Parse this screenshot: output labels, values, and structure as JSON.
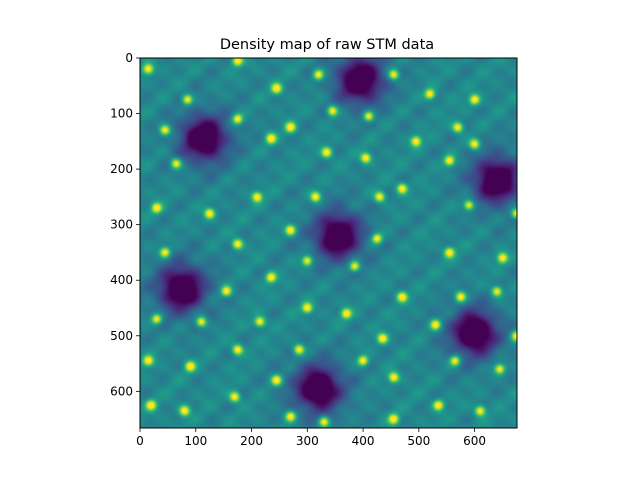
{
  "chart_data": {
    "type": "heatmap",
    "title": "Density map of raw STM data",
    "xlabel": "",
    "ylabel": "",
    "colormap": "viridis",
    "x_range": [
      0,
      676
    ],
    "y_range": [
      0,
      666
    ],
    "y_axis_inverted": true,
    "grid": false,
    "x_ticks": [
      0,
      100,
      200,
      300,
      400,
      500,
      600
    ],
    "y_ticks": [
      0,
      100,
      200,
      300,
      400,
      500,
      600
    ],
    "x_tick_labels": [
      "0",
      "100",
      "200",
      "300",
      "400",
      "500",
      "600"
    ],
    "y_tick_labels": [
      "0",
      "100",
      "200",
      "300",
      "400",
      "500",
      "600"
    ],
    "dark_centers": [
      {
        "x": 395,
        "y": 40
      },
      {
        "x": 115,
        "y": 145
      },
      {
        "x": 640,
        "y": 220
      },
      {
        "x": 355,
        "y": 320
      },
      {
        "x": 75,
        "y": 415
      },
      {
        "x": 600,
        "y": 495
      },
      {
        "x": 320,
        "y": 595
      }
    ],
    "bright_spots": [
      {
        "x": 15,
        "y": 20
      },
      {
        "x": 175,
        "y": 5
      },
      {
        "x": 320,
        "y": 30
      },
      {
        "x": 455,
        "y": 30
      },
      {
        "x": 85,
        "y": 75
      },
      {
        "x": 245,
        "y": 55
      },
      {
        "x": 345,
        "y": 95
      },
      {
        "x": 520,
        "y": 65
      },
      {
        "x": 45,
        "y": 130
      },
      {
        "x": 270,
        "y": 125
      },
      {
        "x": 410,
        "y": 105
      },
      {
        "x": 600,
        "y": 75
      },
      {
        "x": 175,
        "y": 110
      },
      {
        "x": 235,
        "y": 145
      },
      {
        "x": 495,
        "y": 150
      },
      {
        "x": 570,
        "y": 125
      },
      {
        "x": 65,
        "y": 190
      },
      {
        "x": 335,
        "y": 170
      },
      {
        "x": 405,
        "y": 180
      },
      {
        "x": 600,
        "y": 155
      },
      {
        "x": 210,
        "y": 250
      },
      {
        "x": 315,
        "y": 250
      },
      {
        "x": 470,
        "y": 235
      },
      {
        "x": 555,
        "y": 185
      },
      {
        "x": 30,
        "y": 270
      },
      {
        "x": 125,
        "y": 280
      },
      {
        "x": 430,
        "y": 250
      },
      {
        "x": 590,
        "y": 265
      },
      {
        "x": 175,
        "y": 335
      },
      {
        "x": 270,
        "y": 310
      },
      {
        "x": 425,
        "y": 325
      },
      {
        "x": 675,
        "y": 280
      },
      {
        "x": 45,
        "y": 350
      },
      {
        "x": 235,
        "y": 395
      },
      {
        "x": 300,
        "y": 365
      },
      {
        "x": 385,
        "y": 375
      },
      {
        "x": 555,
        "y": 350
      },
      {
        "x": 650,
        "y": 360
      },
      {
        "x": 30,
        "y": 470
      },
      {
        "x": 155,
        "y": 420
      },
      {
        "x": 470,
        "y": 430
      },
      {
        "x": 575,
        "y": 430
      },
      {
        "x": 640,
        "y": 420
      },
      {
        "x": 110,
        "y": 475
      },
      {
        "x": 215,
        "y": 475
      },
      {
        "x": 300,
        "y": 450
      },
      {
        "x": 370,
        "y": 460
      },
      {
        "x": 530,
        "y": 480
      },
      {
        "x": 675,
        "y": 500
      },
      {
        "x": 175,
        "y": 525
      },
      {
        "x": 285,
        "y": 525
      },
      {
        "x": 435,
        "y": 505
      },
      {
        "x": 15,
        "y": 545
      },
      {
        "x": 90,
        "y": 555
      },
      {
        "x": 400,
        "y": 545
      },
      {
        "x": 565,
        "y": 545
      },
      {
        "x": 645,
        "y": 560
      },
      {
        "x": 245,
        "y": 580
      },
      {
        "x": 455,
        "y": 575
      },
      {
        "x": 170,
        "y": 610
      },
      {
        "x": 20,
        "y": 625
      },
      {
        "x": 80,
        "y": 635
      },
      {
        "x": 330,
        "y": 655
      },
      {
        "x": 455,
        "y": 650
      },
      {
        "x": 535,
        "y": 625
      },
      {
        "x": 610,
        "y": 635
      },
      {
        "x": 270,
        "y": 645
      }
    ]
  }
}
